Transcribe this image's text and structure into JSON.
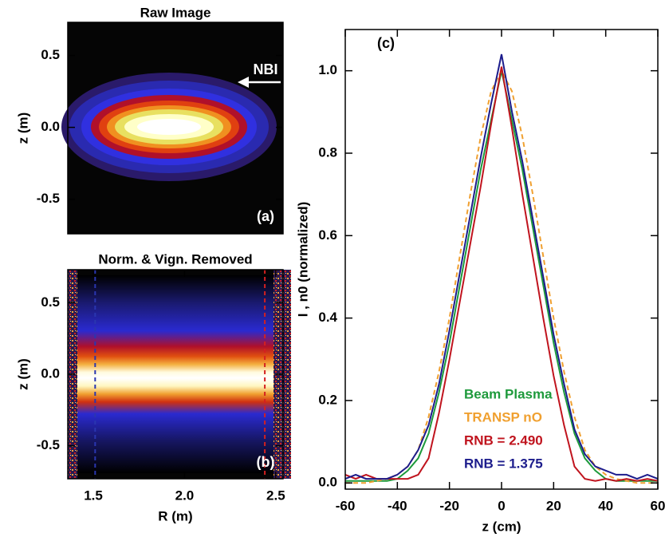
{
  "chart_data": [
    {
      "type": "image",
      "title": "Raw Image",
      "ylabel": "z (m)",
      "ylim": [
        -0.74,
        0.73
      ],
      "yticks": [
        0.5,
        {
          "value": 0,
          "label": "0.0"
        },
        -0.5
      ],
      "annotations": [
        "NBI",
        "(a)"
      ]
    },
    {
      "type": "image",
      "title": "Norm. & Vign. Removed",
      "ylabel": "z (m)",
      "xlabel": "R (m)",
      "ylim": [
        -0.73,
        0.73
      ],
      "yticks": [
        0.5,
        {
          "value": 0,
          "label": "0.0"
        },
        -0.5
      ],
      "xlim": [
        1.36,
        2.54
      ],
      "xticks": [
        1.5,
        {
          "value": 2,
          "label": "2.0"
        },
        2.5
      ],
      "markers": [
        {
          "x": 1.51,
          "color": "#2a36b0"
        },
        {
          "x": 2.44,
          "color": "#d42020"
        }
      ],
      "annotations": [
        "(b)"
      ]
    },
    {
      "type": "line",
      "xlabel": "z (cm)",
      "ylabel": "I , n0 (normalized)",
      "annotations": [
        "(c)"
      ],
      "xlim": [
        -60,
        60
      ],
      "xticks": [
        -60,
        -40,
        -20,
        0,
        20,
        40,
        60
      ],
      "ylim": [
        -0.015,
        1.1
      ],
      "yticks": [
        {
          "value": 0,
          "label": "0.0"
        },
        0.2,
        0.4,
        0.6,
        0.8,
        {
          "value": 1,
          "label": "1.0"
        }
      ],
      "x": [
        -60,
        -56,
        -52,
        -48,
        -44,
        -40,
        -36,
        -32,
        -28,
        -24,
        -20,
        -16,
        -12,
        -8,
        -4,
        0,
        4,
        8,
        12,
        16,
        20,
        24,
        28,
        32,
        36,
        40,
        44,
        48,
        52,
        56,
        60
      ],
      "series": [
        {
          "name": "Beam Plasma",
          "color": "#1e9a3c",
          "dashed": false,
          "values": [
            0.005,
            0.005,
            0.005,
            0.005,
            0.005,
            0.01,
            0.03,
            0.06,
            0.12,
            0.22,
            0.34,
            0.48,
            0.62,
            0.76,
            0.88,
            1.0,
            0.88,
            0.76,
            0.62,
            0.48,
            0.34,
            0.22,
            0.12,
            0.06,
            0.03,
            0.01,
            0.005,
            0.005,
            0.005,
            0.005,
            0.005
          ]
        },
        {
          "name": "TRANSP nO",
          "color": "#f0a030",
          "dashed": true,
          "values": [
            0,
            0,
            0,
            0.005,
            0.01,
            0.02,
            0.04,
            0.08,
            0.16,
            0.27,
            0.4,
            0.55,
            0.7,
            0.84,
            0.95,
            1.0,
            0.95,
            0.84,
            0.7,
            0.55,
            0.4,
            0.27,
            0.16,
            0.08,
            0.04,
            0.02,
            0.01,
            0.005,
            0,
            0,
            0
          ]
        },
        {
          "name": "RNB = 2.490",
          "color": "#c0141e",
          "dashed": false,
          "values": [
            0.02,
            0.01,
            0.02,
            0.01,
            0.01,
            0.01,
            0.01,
            0.02,
            0.06,
            0.17,
            0.3,
            0.44,
            0.58,
            0.72,
            0.87,
            1.01,
            0.86,
            0.7,
            0.55,
            0.4,
            0.26,
            0.14,
            0.04,
            0.01,
            0.005,
            0.01,
            0.005,
            0.01,
            0.005,
            0.01,
            0.005
          ]
        },
        {
          "name": "RNB = 1.375",
          "color": "#1c1c8c",
          "dashed": false,
          "values": [
            0.01,
            0.02,
            0.01,
            0.01,
            0.01,
            0.02,
            0.04,
            0.08,
            0.14,
            0.24,
            0.37,
            0.51,
            0.65,
            0.79,
            0.92,
            1.04,
            0.9,
            0.78,
            0.64,
            0.5,
            0.36,
            0.24,
            0.13,
            0.07,
            0.04,
            0.03,
            0.02,
            0.02,
            0.01,
            0.02,
            0.01
          ]
        }
      ]
    }
  ]
}
